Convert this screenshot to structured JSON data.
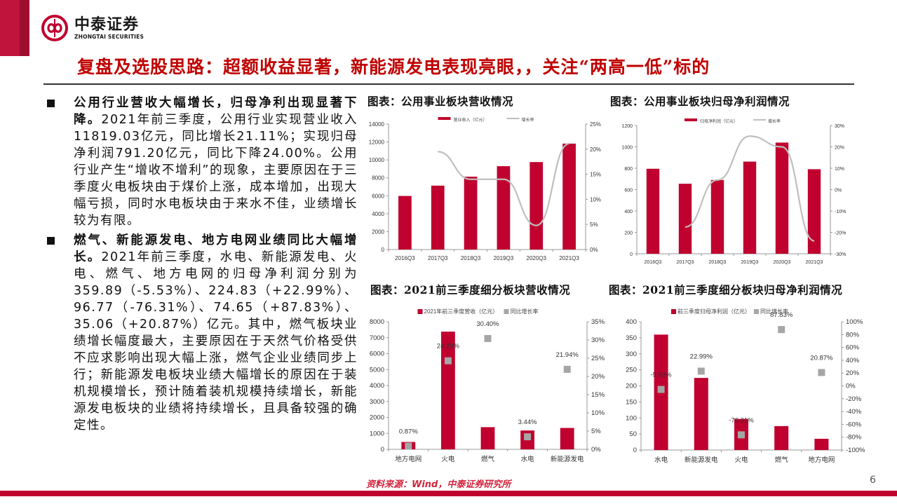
{
  "brand": {
    "name_cn": "中泰证券",
    "name_en": "ZHONGTAI SECURITIES",
    "accent_color": "#c0002e"
  },
  "slide": {
    "title": "复盘及选股思路：超额收益显著，新能源发电表现亮眼，，关注“两高一低”标的",
    "page_number": "6",
    "source": "资料来源：Wind，中泰证券研究所"
  },
  "body": {
    "points": [
      {
        "heading": "公用行业营收大幅增长，归母净利出现显著下降。",
        "text": "2021年前三季度，公用行业实现营业收入11819.03亿元，同比增长21.11%；实现归母净利润791.20亿元，同比下降24.00%。公用行业产生“增收不增利”的现象，主要原因在于三季度火电板块由于煤价上涨，成本增加，出现大幅亏损，同时水电板块由于来水不佳，业绩增长较为有限。"
      },
      {
        "heading": "燃气、新能源发电、地方电网业绩同比大幅增长。",
        "text": "2021年前三季度，水电、新能源发电、火电、燃气、地方电网的归母净利润分别为359.89（-5.53%）、224.83（+22.99%）、96.77（-76.31%）、74.65（+87.83%）、35.06（+20.87%）亿元。其中，燃气板块业绩增长幅度最大，主要原因在于天然气价格受供不应求影响出现大幅上涨，燃气企业业绩同步上行；新能源发电板块业绩大幅增长的原因在于装机规模增长，预计随着装机规模持续增长，新能源发电板块的业绩将持续增长，且具备较强的确定性。"
      }
    ]
  },
  "chart_data": [
    {
      "type": "bar",
      "title": "图表：公用事业板块营收情况",
      "categories": [
        "2016Q3",
        "2017Q3",
        "2018Q3",
        "2019Q3",
        "2020Q3",
        "2021Q3"
      ],
      "series": [
        {
          "name": "营业收入（亿元）",
          "type": "bar",
          "axis": "left",
          "color": "#c0002e",
          "values": [
            5980,
            7130,
            8130,
            9300,
            9760,
            11819
          ]
        },
        {
          "name": "增长率",
          "type": "line",
          "axis": "right",
          "color": "#bfbfbf",
          "values": [
            null,
            19.5,
            14.0,
            14.0,
            4.8,
            21.1
          ]
        }
      ],
      "ylim": [
        0,
        14000
      ],
      "yticks": [
        "0",
        "2000",
        "4000",
        "6000",
        "8000",
        "10000",
        "12000",
        "14000"
      ],
      "y2lim": [
        0,
        25
      ],
      "y2ticks": [
        "0%",
        "5%",
        "10%",
        "15%",
        "20%",
        "25%"
      ],
      "legend_position": "top"
    },
    {
      "type": "bar",
      "title": "图表：公用事业板块归母净利润情况",
      "categories": [
        "2016Q3",
        "2017Q3",
        "2018Q3",
        "2019Q3",
        "2020Q3",
        "2021Q3"
      ],
      "series": [
        {
          "name": "归母净利润（亿元）",
          "type": "bar",
          "axis": "left",
          "color": "#c0002e",
          "values": [
            795,
            655,
            690,
            862,
            1040,
            791
          ]
        },
        {
          "name": "增长率",
          "type": "line",
          "axis": "right",
          "color": "#bfbfbf",
          "values": [
            null,
            -17.5,
            4.5,
            25,
            20,
            -24
          ]
        }
      ],
      "ylim": [
        0,
        1200
      ],
      "yticks": [
        "0",
        "200",
        "400",
        "600",
        "800",
        "1000",
        "1200"
      ],
      "y2lim": [
        -30,
        30
      ],
      "y2ticks": [
        "-30%",
        "-20%",
        "-10%",
        "0%",
        "10%",
        "20%",
        "30%"
      ],
      "legend_position": "top"
    },
    {
      "type": "bar",
      "title": "图表：2021前三季度细分板块营收情况",
      "categories": [
        "地方电网",
        "火电",
        "燃气",
        "水电",
        "新能源发电"
      ],
      "series": [
        {
          "name": "2021年前三季度营收（亿元）",
          "type": "bar",
          "axis": "left",
          "color": "#c0002e",
          "values": [
            460,
            7380,
            1390,
            1180,
            1340
          ]
        },
        {
          "name": "同比增长率",
          "type": "scatter",
          "axis": "right",
          "color": "#a6a6a6",
          "values": [
            0.87,
            24.29,
            30.4,
            3.44,
            21.94
          ],
          "labels": [
            "0.87%",
            "24.29%",
            "30.40%",
            "3.44%",
            "21.94%"
          ]
        }
      ],
      "ylim": [
        0,
        8000
      ],
      "yticks": [
        "0",
        "1000",
        "2000",
        "3000",
        "4000",
        "5000",
        "6000",
        "7000",
        "8000"
      ],
      "y2lim": [
        0,
        35
      ],
      "y2ticks": [
        "0%",
        "5%",
        "10%",
        "15%",
        "20%",
        "25%",
        "30%",
        "35%"
      ],
      "legend_position": "top"
    },
    {
      "type": "bar",
      "title": "图表：2021前三季度细分板块归母净利润情况",
      "categories": [
        "水电",
        "新能源发电",
        "火电",
        "燃气",
        "地方电网"
      ],
      "series": [
        {
          "name": "前三季度归母净利润（亿元）",
          "type": "bar",
          "axis": "left",
          "color": "#c0002e",
          "values": [
            359.89,
            224.83,
            96.77,
            74.65,
            35.06
          ]
        },
        {
          "name": "同比增长率",
          "type": "scatter",
          "axis": "right",
          "color": "#a6a6a6",
          "values": [
            -5.53,
            22.99,
            -76.31,
            87.83,
            20.87
          ],
          "labels": [
            "-5.53%",
            "22.99%",
            "-76.31%",
            "87.83%",
            "20.87%"
          ]
        }
      ],
      "ylim": [
        0,
        400
      ],
      "yticks": [
        "0",
        "50",
        "100",
        "150",
        "200",
        "250",
        "300",
        "350",
        "400"
      ],
      "y2lim": [
        -100,
        100
      ],
      "y2ticks": [
        "-100%",
        "-80%",
        "-60%",
        "-40%",
        "-20%",
        "0%",
        "20%",
        "40%",
        "60%",
        "80%",
        "100%"
      ],
      "legend_position": "top"
    }
  ]
}
